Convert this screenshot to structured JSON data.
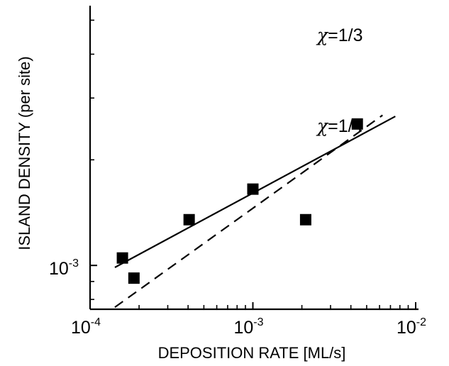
{
  "chart_data": {
    "type": "scatter",
    "title": "",
    "xlabel": "DEPOSITION RATE [ML/s]",
    "ylabel": "ISLAND DENSITY (per site)",
    "xscale": "log",
    "yscale": "log",
    "xlim": [
      0.0001,
      0.01
    ],
    "ylim": [
      0.00075,
      0.0055
    ],
    "grid": false,
    "x_ticks": [
      {
        "value": 0.0001,
        "base": "10",
        "exp": "-4"
      },
      {
        "value": 0.001,
        "base": "10",
        "exp": "-3"
      },
      {
        "value": 0.01,
        "base": "10",
        "exp": "-2"
      }
    ],
    "y_ticks": [
      {
        "value": 0.001,
        "base": "10",
        "exp": "-3"
      }
    ],
    "points": [
      {
        "x": 0.000158,
        "y": 0.00105
      },
      {
        "x": 0.000186,
        "y": 0.00092
      },
      {
        "x": 0.000406,
        "y": 0.00135
      },
      {
        "x": 0.001,
        "y": 0.00165
      },
      {
        "x": 0.00211,
        "y": 0.00135
      },
      {
        "x": 0.00438,
        "y": 0.00253
      }
    ],
    "fit_lines": [
      {
        "label_symbol": "χ",
        "label_value": "=1/4",
        "style": "solid",
        "slope": 0.25,
        "x": [
          0.000142,
          0.0075
        ],
        "y": [
          0.000987,
          0.00266
        ]
      },
      {
        "label_symbol": "χ",
        "label_value": "=1/3",
        "style": "dashed",
        "slope": 0.3333,
        "x": [
          0.000142,
          0.00626
        ],
        "y": [
          0.00076,
          0.00268
        ]
      }
    ],
    "point_color": "#000000",
    "line_color": "#000000"
  }
}
